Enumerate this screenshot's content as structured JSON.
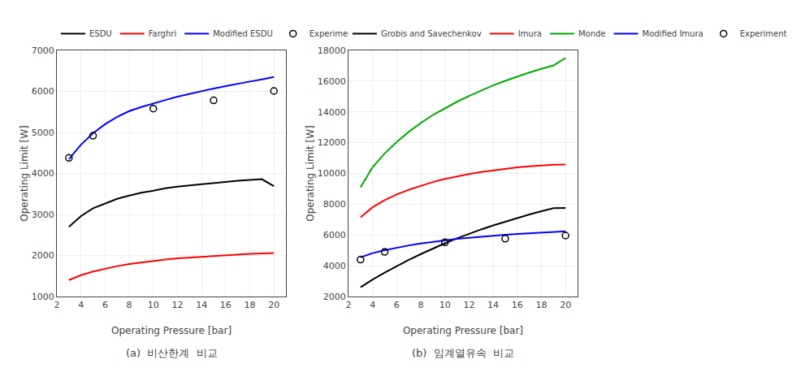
{
  "chart_data": [
    {
      "type": "line",
      "xlabel": "Operating Pressure [bar]",
      "ylabel": "Operating Limit [W]",
      "caption": "(a)  비산한계  비교",
      "xlim": [
        2,
        21
      ],
      "ylim": [
        1000,
        7000
      ],
      "xticks": [
        2,
        4,
        6,
        8,
        10,
        12,
        14,
        16,
        18,
        20
      ],
      "yticks": [
        1000,
        2000,
        3000,
        4000,
        5000,
        6000,
        7000
      ],
      "grid": true,
      "legend": "upper left",
      "x": [
        3,
        4,
        5,
        6,
        7,
        8,
        9,
        10,
        11,
        12,
        13,
        14,
        15,
        16,
        17,
        18,
        19,
        20
      ],
      "series": [
        {
          "name": "ESDU",
          "color": "#000000",
          "values": [
            2700,
            2960,
            3150,
            3270,
            3380,
            3460,
            3530,
            3580,
            3640,
            3680,
            3710,
            3740,
            3770,
            3790,
            3820,
            3840,
            3860,
            3690
          ]
        },
        {
          "name": "Farghri",
          "color": "#ff0000",
          "values": [
            1400,
            1520,
            1610,
            1680,
            1740,
            1790,
            1830,
            1870,
            1900,
            1930,
            1950,
            1970,
            1990,
            2010,
            2020,
            2040,
            2050,
            2060
          ]
        },
        {
          "name": "Modified ESDU",
          "color": "#0000ff",
          "values": [
            4350,
            4700,
            4980,
            5200,
            5380,
            5520,
            5620,
            5710,
            5790,
            5870,
            5940,
            6010,
            6070,
            6130,
            6190,
            6240,
            6290,
            6350
          ]
        },
        {
          "name": "Experiment",
          "type": "scatter",
          "marker": "open circle",
          "color": "#000000",
          "x": [
            3,
            5,
            10,
            15,
            20
          ],
          "values": [
            4380,
            4920,
            5580,
            5780,
            6010
          ]
        }
      ]
    },
    {
      "type": "line",
      "xlabel": "Operating Pressure [bar]",
      "ylabel": "Operating Limit [W]",
      "caption": "(b)  임계열유속  비교",
      "xlim": [
        2,
        21
      ],
      "ylim": [
        2000,
        18000
      ],
      "xticks": [
        2,
        4,
        6,
        8,
        10,
        12,
        14,
        16,
        18,
        20
      ],
      "yticks": [
        2000,
        4000,
        6000,
        8000,
        10000,
        12000,
        14000,
        16000,
        18000
      ],
      "grid": true,
      "legend": "upper left",
      "x": [
        3,
        4,
        5,
        6,
        7,
        8,
        9,
        10,
        11,
        12,
        13,
        14,
        15,
        16,
        17,
        18,
        19,
        20
      ],
      "series": [
        {
          "name": "Grobis and Savechenkov",
          "color": "#000000",
          "values": [
            2600,
            3100,
            3550,
            3980,
            4380,
            4760,
            5120,
            5460,
            5780,
            6080,
            6360,
            6620,
            6870,
            7100,
            7330,
            7540,
            7740,
            7750
          ]
        },
        {
          "name": "Imura",
          "color": "#ff0000",
          "values": [
            7150,
            7800,
            8260,
            8630,
            8940,
            9200,
            9440,
            9640,
            9810,
            9960,
            10090,
            10200,
            10300,
            10390,
            10460,
            10520,
            10570,
            10580
          ]
        },
        {
          "name": "Monde",
          "color": "#00aa00",
          "values": [
            9100,
            10400,
            11300,
            12050,
            12700,
            13280,
            13800,
            14250,
            14660,
            15040,
            15390,
            15720,
            16020,
            16300,
            16560,
            16800,
            17020,
            17510
          ]
        },
        {
          "name": "Modified Imura",
          "color": "#0000ff",
          "values": [
            4550,
            4820,
            5010,
            5180,
            5320,
            5450,
            5560,
            5660,
            5750,
            5820,
            5890,
            5950,
            6010,
            6060,
            6110,
            6160,
            6200,
            6240
          ]
        },
        {
          "name": "Experiment",
          "type": "scatter",
          "marker": "open circle",
          "color": "#000000",
          "x": [
            3,
            5,
            10,
            15,
            20
          ],
          "values": [
            4400,
            4900,
            5520,
            5760,
            5960
          ]
        }
      ]
    }
  ]
}
